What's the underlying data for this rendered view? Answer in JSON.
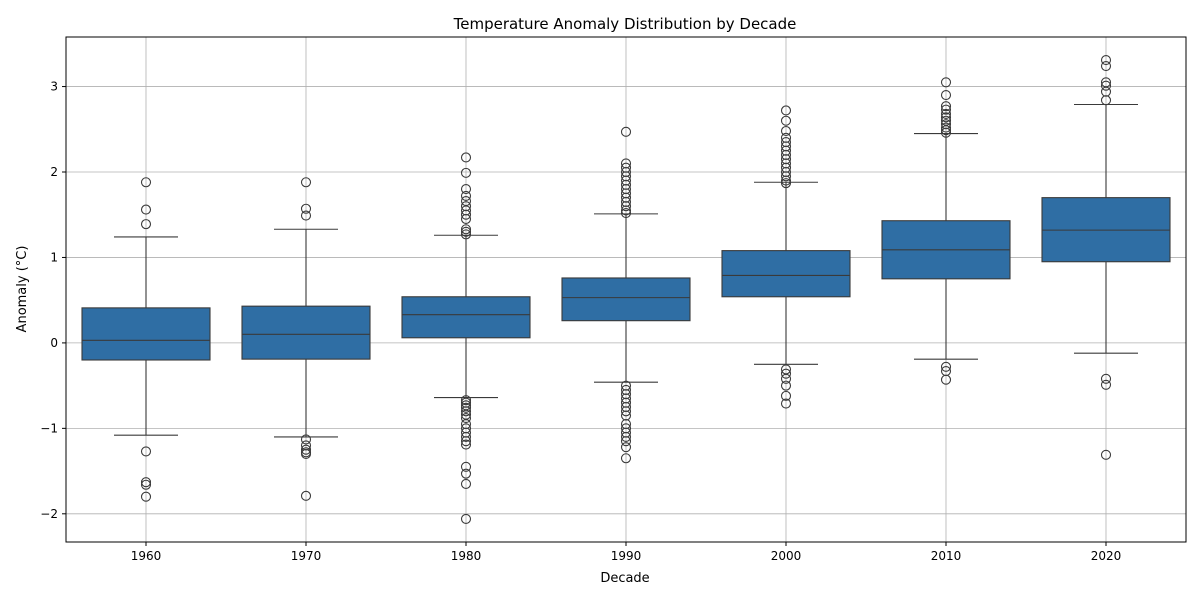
{
  "chart_data": {
    "type": "box",
    "title": "Temperature Anomaly Distribution by Decade",
    "xlabel": "Decade",
    "ylabel": "Anomaly (°C)",
    "ylim": [
      -2.33,
      3.58
    ],
    "yticks": [
      -2,
      -1,
      0,
      1,
      2,
      3
    ],
    "ytick_labels": [
      "−2",
      "−1",
      "0",
      "1",
      "2",
      "3"
    ],
    "grid": true,
    "colors": {
      "box": "#2f6ea4",
      "box_edge": "#3a3a3a",
      "grid": "#b0b0b0"
    },
    "categories": [
      "1960",
      "1970",
      "1980",
      "1990",
      "2000",
      "2010",
      "2020"
    ],
    "boxes": [
      {
        "category": "1960",
        "whisker_low": -1.08,
        "q1": -0.2,
        "median": 0.03,
        "q3": 0.41,
        "whisker_high": 1.24,
        "outliers": [
          1.88,
          1.56,
          1.39,
          -1.27,
          -1.63,
          -1.66,
          -1.8
        ]
      },
      {
        "category": "1970",
        "whisker_low": -1.1,
        "q1": -0.19,
        "median": 0.1,
        "q3": 0.43,
        "whisker_high": 1.33,
        "outliers": [
          1.88,
          1.57,
          1.49,
          -1.13,
          -1.2,
          -1.25,
          -1.28,
          -1.3,
          -1.79
        ]
      },
      {
        "category": "1980",
        "whisker_low": -0.64,
        "q1": 0.06,
        "median": 0.33,
        "q3": 0.54,
        "whisker_high": 1.26,
        "outliers": [
          2.17,
          1.99,
          1.8,
          1.72,
          1.66,
          1.6,
          1.55,
          1.5,
          1.45,
          1.33,
          1.3,
          1.27,
          -0.67,
          -0.7,
          -0.73,
          -0.76,
          -0.8,
          -0.84,
          -0.88,
          -0.95,
          -1.0,
          -1.05,
          -1.1,
          -1.15,
          -1.19,
          -1.45,
          -1.53,
          -1.65,
          -2.06
        ]
      },
      {
        "category": "1990",
        "whisker_low": -0.46,
        "q1": 0.26,
        "median": 0.53,
        "q3": 0.76,
        "whisker_high": 1.51,
        "outliers": [
          2.47,
          2.1,
          2.05,
          2.0,
          1.95,
          1.9,
          1.85,
          1.8,
          1.75,
          1.7,
          1.65,
          1.6,
          1.55,
          1.52,
          -0.5,
          -0.55,
          -0.6,
          -0.65,
          -0.7,
          -0.75,
          -0.8,
          -0.85,
          -0.95,
          -1.0,
          -1.05,
          -1.1,
          -1.15,
          -1.22,
          -1.35
        ]
      },
      {
        "category": "2000",
        "whisker_low": -0.25,
        "q1": 0.54,
        "median": 0.79,
        "q3": 1.08,
        "whisker_high": 1.88,
        "outliers": [
          2.72,
          2.6,
          2.48,
          2.4,
          2.35,
          2.3,
          2.25,
          2.2,
          2.15,
          2.1,
          2.05,
          2.0,
          1.95,
          1.9,
          1.87,
          -0.31,
          -0.36,
          -0.42,
          -0.5,
          -0.62,
          -0.71
        ]
      },
      {
        "category": "2010",
        "whisker_low": -0.19,
        "q1": 0.75,
        "median": 1.09,
        "q3": 1.43,
        "whisker_high": 2.45,
        "outliers": [
          3.05,
          2.9,
          2.77,
          2.73,
          2.68,
          2.64,
          2.6,
          2.56,
          2.52,
          2.49,
          2.46,
          -0.28,
          -0.33,
          -0.43
        ]
      },
      {
        "category": "2020",
        "whisker_low": -0.12,
        "q1": 0.95,
        "median": 1.32,
        "q3": 1.7,
        "whisker_high": 2.79,
        "outliers": [
          3.31,
          3.24,
          3.05,
          3.01,
          2.94,
          2.84,
          -0.42,
          -0.49,
          -1.31
        ]
      }
    ]
  }
}
